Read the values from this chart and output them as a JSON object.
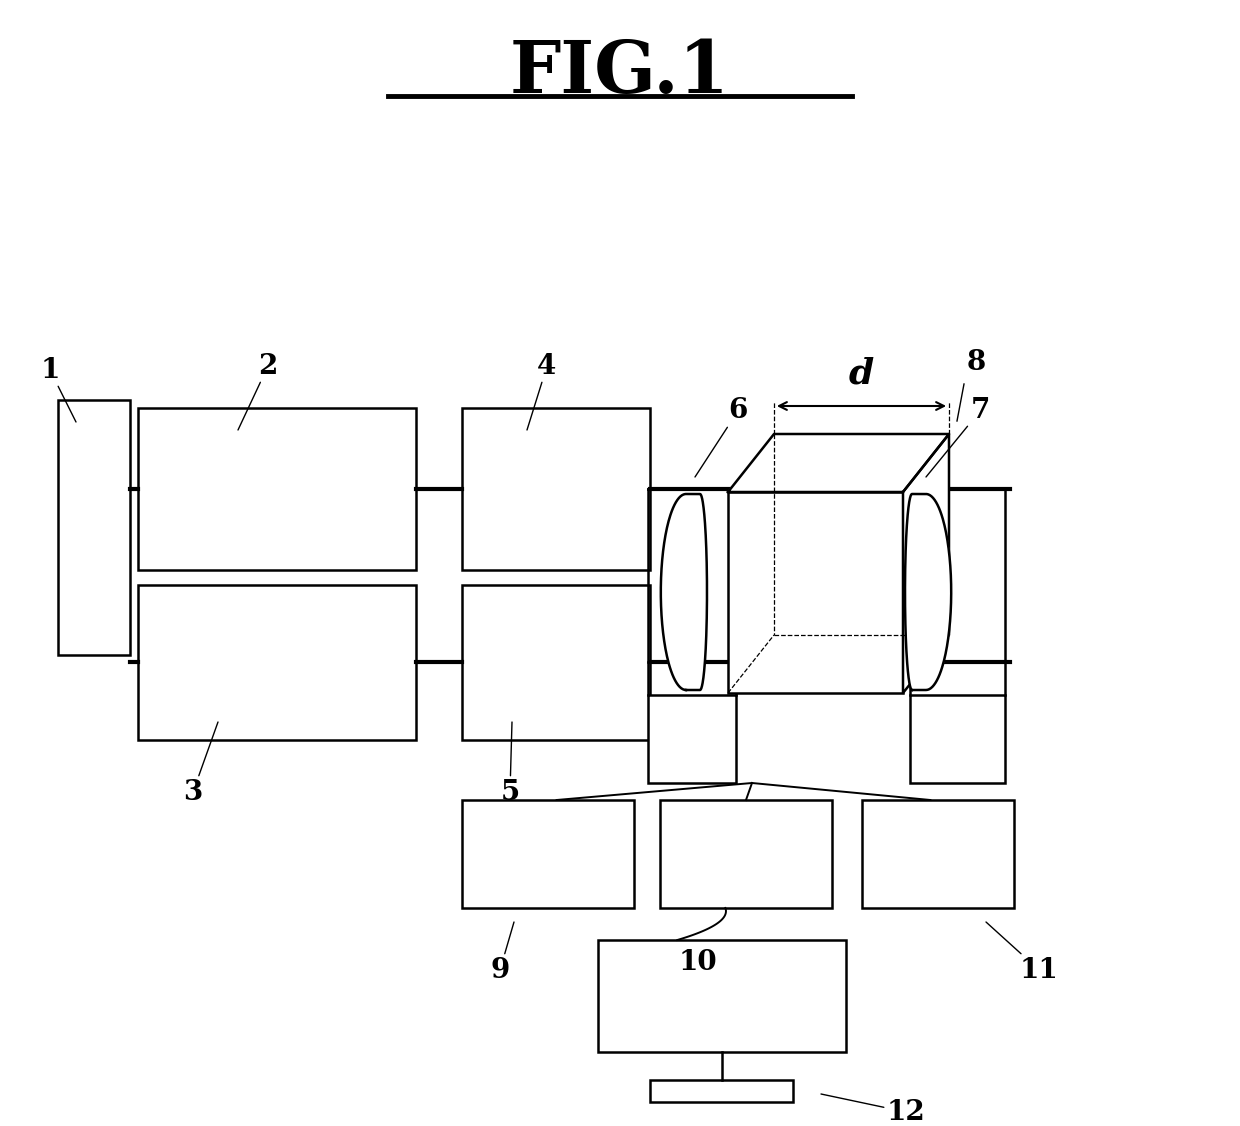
{
  "title": "FIG.1",
  "bg": "#ffffff",
  "lc": "#000000",
  "lw": 1.8,
  "figsize": [
    12.4,
    11.26
  ],
  "dpi": 100
}
